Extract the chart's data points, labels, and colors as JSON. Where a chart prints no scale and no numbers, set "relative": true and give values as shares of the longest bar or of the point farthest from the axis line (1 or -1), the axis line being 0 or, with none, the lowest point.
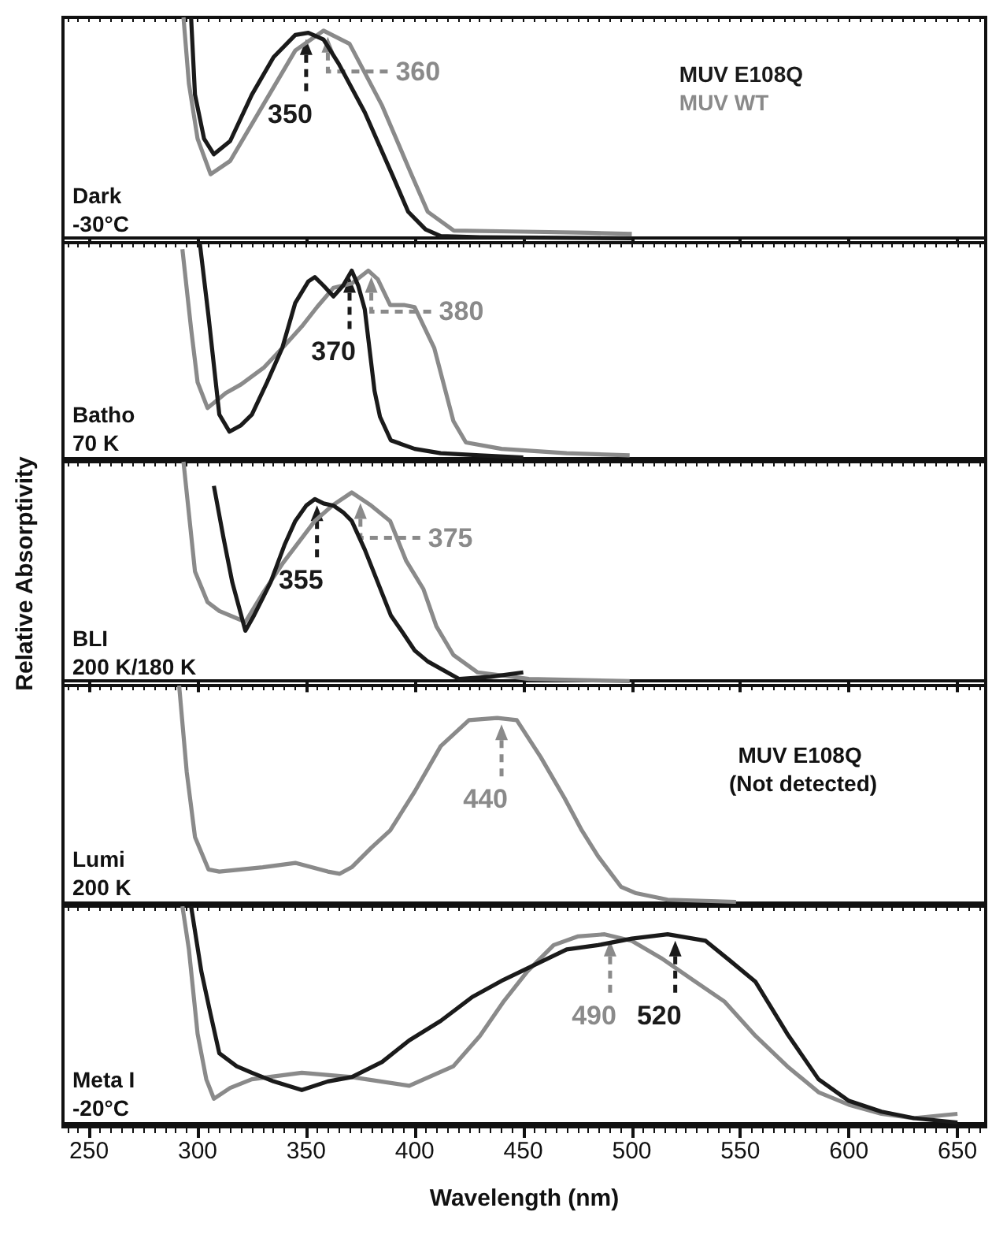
{
  "chart_data": [
    {
      "type": "line",
      "relative": true,
      "tick_labels": false,
      "xlim": [
        238,
        663
      ],
      "xticks": [
        250,
        300,
        350,
        400,
        450,
        500,
        550,
        600,
        650
      ],
      "legend": "top right",
      "annotations": [
        "Dark",
        "-30°C",
        {
          "text": "350",
          "x": 350,
          "y": 0.93
        },
        {
          "text": "360",
          "x": 360,
          "y": 0.94
        }
      ],
      "series": [
        {
          "name": "MUV E108Q",
          "color": "#1a1a1a",
          "x": [
            297,
            298.8,
            303,
            307.5,
            315,
            325,
            335,
            345,
            351,
            358,
            365,
            377,
            390,
            397,
            405,
            412,
            430,
            500
          ],
          "values": [
            1.0,
            0.65,
            0.45,
            0.38,
            0.44,
            0.65,
            0.82,
            0.92,
            0.93,
            0.9,
            0.79,
            0.57,
            0.28,
            0.12,
            0.04,
            0.01,
            0.005,
            0
          ]
        },
        {
          "name": "MUV WT",
          "color": "#8a8a8a",
          "x": [
            293.5,
            296,
            300,
            306,
            315,
            330,
            345,
            358,
            370,
            385,
            398,
            406,
            418,
            450,
            480,
            500
          ],
          "values": [
            1.0,
            0.7,
            0.45,
            0.29,
            0.35,
            0.6,
            0.85,
            0.94,
            0.88,
            0.6,
            0.3,
            0.12,
            0.035,
            0.03,
            0.025,
            0.02
          ]
        }
      ]
    },
    {
      "type": "line",
      "relative": true,
      "tick_labels": false,
      "xlim": [
        238,
        663
      ],
      "xticks": [
        250,
        300,
        350,
        400,
        450,
        500,
        550,
        600,
        650
      ],
      "annotations": [
        "Batho",
        "70 K",
        {
          "text": "370",
          "x": 370,
          "y": 0.87
        },
        {
          "text": "380",
          "x": 380,
          "y": 0.87
        }
      ],
      "series": [
        {
          "color": "#1a1a1a",
          "x": [
            301,
            305,
            310,
            314.7,
            320,
            325,
            332,
            339,
            345,
            351,
            354,
            358,
            362.6,
            367,
            371,
            374,
            377,
            381.5,
            384,
            389,
            400,
            412,
            430,
            450
          ],
          "values": [
            1.0,
            0.66,
            0.2,
            0.12,
            0.15,
            0.2,
            0.35,
            0.51,
            0.72,
            0.82,
            0.84,
            0.8,
            0.75,
            0.8,
            0.87,
            0.8,
            0.69,
            0.31,
            0.19,
            0.08,
            0.04,
            0.02,
            0.01,
            0
          ]
        },
        {
          "color": "#8a8a8a",
          "x": [
            293,
            297,
            300,
            304.6,
            313,
            320,
            330.7,
            340,
            348,
            355,
            362.6,
            371,
            378.6,
            383,
            388.7,
            395,
            400,
            409,
            417.8,
            423.6,
            440,
            470,
            499
          ],
          "values": [
            0.97,
            0.6,
            0.35,
            0.23,
            0.3,
            0.34,
            0.42,
            0.52,
            0.61,
            0.7,
            0.79,
            0.81,
            0.87,
            0.83,
            0.71,
            0.71,
            0.7,
            0.51,
            0.17,
            0.07,
            0.04,
            0.02,
            0.01
          ]
        }
      ]
    },
    {
      "type": "line",
      "relative": true,
      "tick_labels": false,
      "xlim": [
        238,
        663
      ],
      "xticks": [
        250,
        300,
        350,
        400,
        450,
        500,
        550,
        600,
        650
      ],
      "ylabel": "Relative Absorptivity",
      "annotations": [
        "BLI",
        "200 K/180 K",
        {
          "text": "355",
          "x": 355,
          "y": 0.83
        },
        {
          "text": "375",
          "x": 375,
          "y": 0.84
        }
      ],
      "series": [
        {
          "color": "#1a1a1a",
          "x": [
            307.5,
            312,
            316,
            322,
            326,
            333.6,
            340,
            345,
            350,
            354,
            358,
            362.6,
            367,
            371,
            377,
            383,
            389,
            394.6,
            400,
            406,
            420.5,
            435,
            450
          ],
          "values": [
            0.89,
            0.65,
            0.45,
            0.23,
            0.3,
            0.45,
            0.62,
            0.73,
            0.8,
            0.83,
            0.81,
            0.8,
            0.77,
            0.73,
            0.6,
            0.45,
            0.3,
            0.22,
            0.14,
            0.09,
            0.01,
            0.02,
            0.04
          ]
        },
        {
          "color": "#8a8a8a",
          "x": [
            293.5,
            298.8,
            304.6,
            310,
            322,
            330,
            339.4,
            354,
            362,
            371,
            380,
            388.7,
            396,
            404,
            410,
            417.8,
            429,
            452.6,
            499
          ],
          "values": [
            1.0,
            0.5,
            0.36,
            0.32,
            0.27,
            0.4,
            0.54,
            0.73,
            0.8,
            0.86,
            0.8,
            0.73,
            0.55,
            0.42,
            0.25,
            0.12,
            0.04,
            0.01,
            0
          ]
        }
      ]
    },
    {
      "type": "line",
      "relative": true,
      "tick_labels": false,
      "xlim": [
        238,
        663
      ],
      "xticks": [
        250,
        300,
        350,
        400,
        450,
        500,
        550,
        600,
        650
      ],
      "subtitle": "MUV E108Q (Not detected)",
      "annotations": [
        "Lumi",
        "200 K",
        {
          "text": "440",
          "x": 440,
          "y": 0.85
        }
      ],
      "series": [
        {
          "color": "#8a8a8a",
          "x": [
            291.5,
            295,
            298.8,
            305,
            310,
            330,
            345,
            360,
            365.5,
            371,
            380,
            388.7,
            400,
            412,
            425,
            438,
            447,
            458,
            469,
            477,
            484.5,
            495,
            502,
            516.5,
            548
          ],
          "values": [
            1.0,
            0.6,
            0.3,
            0.15,
            0.14,
            0.16,
            0.18,
            0.14,
            0.13,
            0.16,
            0.25,
            0.33,
            0.51,
            0.72,
            0.84,
            0.85,
            0.84,
            0.67,
            0.48,
            0.33,
            0.21,
            0.07,
            0.04,
            0.01,
            0
          ]
        }
      ]
    },
    {
      "type": "line",
      "relative": true,
      "tick_labels": "x",
      "xlim": [
        238,
        663
      ],
      "xticks": [
        250,
        300,
        350,
        400,
        450,
        500,
        550,
        600,
        650
      ],
      "xlabel": "Wavelength (nm)",
      "annotations": [
        "Meta I",
        "-20°C",
        {
          "text": "490",
          "x": 490,
          "y": 0.87
        },
        {
          "text": "520",
          "x": 520,
          "y": 0.87
        }
      ],
      "series": [
        {
          "color": "#1a1a1a",
          "x": [
            297,
            301.7,
            306,
            310,
            318,
            325,
            335,
            348,
            360,
            371,
            385,
            397.5,
            412,
            426.5,
            441,
            455.5,
            470,
            484.5,
            500,
            516.5,
            534,
            545,
            557,
            571.6,
            586,
            600,
            615,
            630,
            650
          ],
          "values": [
            1.0,
            0.7,
            0.5,
            0.32,
            0.26,
            0.23,
            0.19,
            0.15,
            0.19,
            0.21,
            0.28,
            0.38,
            0.47,
            0.58,
            0.66,
            0.73,
            0.8,
            0.82,
            0.85,
            0.87,
            0.84,
            0.75,
            0.65,
            0.41,
            0.2,
            0.1,
            0.05,
            0.02,
            0
          ]
        },
        {
          "color": "#8a8a8a",
          "x": [
            293,
            296,
            300,
            304,
            307.5,
            315,
            325,
            348,
            371,
            397.5,
            417.8,
            430,
            441,
            452,
            464,
            475,
            487.5,
            500,
            513.6,
            528,
            542.6,
            557,
            571.6,
            586,
            600.6,
            615,
            629.6,
            650
          ],
          "values": [
            1.0,
            0.8,
            0.41,
            0.2,
            0.11,
            0.16,
            0.2,
            0.23,
            0.21,
            0.17,
            0.26,
            0.4,
            0.56,
            0.7,
            0.82,
            0.86,
            0.87,
            0.84,
            0.76,
            0.66,
            0.56,
            0.4,
            0.26,
            0.14,
            0.08,
            0.04,
            0.02,
            0.04
          ]
        }
      ]
    }
  ]
}
